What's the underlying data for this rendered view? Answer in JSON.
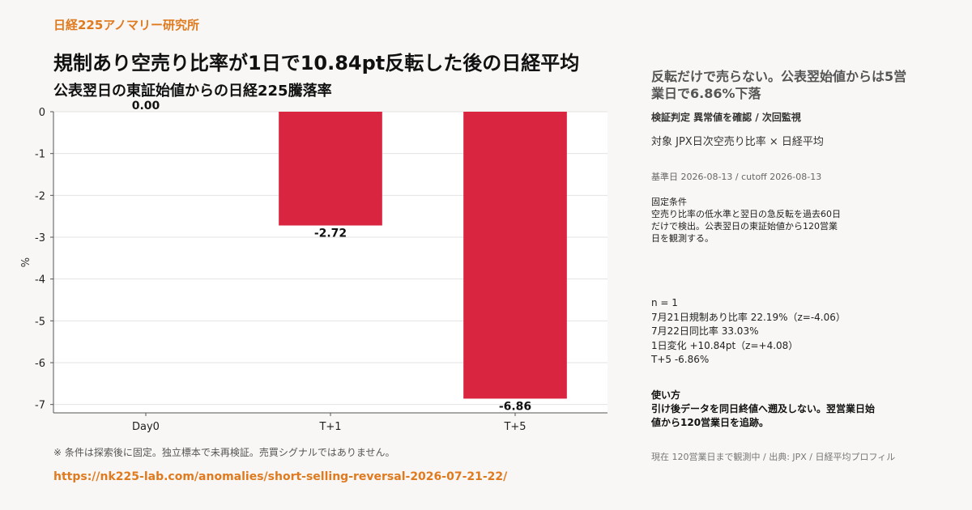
{
  "brand": "日経225アノマリー研究所",
  "title": "規制あり空売り比率が1日で10.84pt反転した後の日経平均",
  "subtitle": "公表翌日の東証始値からの日経225騰落率",
  "chart_data": {
    "type": "bar",
    "categories": [
      "Day0",
      "T+1",
      "T+5"
    ],
    "values": [
      0.0,
      -2.72,
      -6.86
    ],
    "value_labels": [
      "0.00",
      "-2.72",
      "-6.86"
    ],
    "ylabel": "%",
    "ylim": [
      -7.2,
      0
    ],
    "yticks": [
      0,
      -1,
      -2,
      -3,
      -4,
      -5,
      -6,
      -7
    ],
    "ytick_labels": [
      "0",
      "-1",
      "-2",
      "-3",
      "-4",
      "-5",
      "-6",
      "-7"
    ],
    "grid": true,
    "bar_color": "#d92540"
  },
  "footnote": "※ 条件は探索後に固定。独立標本で未再検証。売買シグナルではありません。",
  "url": "https://nk225-lab.com/anomalies/short-selling-reversal-2026-07-21-22/",
  "side": {
    "headline": "反転だけで売らない。公表翌始値からは5営業日で6.86%下落",
    "verdict": "検証判定  異常値を確認 / 次回監視",
    "target": "対象  JPX日次空売り比率 × 日経平均",
    "dates": "基準日 2026-08-13 / cutoff 2026-08-13",
    "conditions_title": "固定条件",
    "conditions_lines": [
      "空売り比率の低水準と翌日の急反転を過去60日",
      "だけで検出。公表翌日の東証始値から120営業",
      "日を観測する。"
    ],
    "stats": [
      "n = 1",
      "7月21日規制あり比率  22.19%（z=-4.06）",
      "7月22日同比率  33.03%",
      "1日変化  +10.84pt（z=+4.08）",
      "T+5  -6.86%"
    ],
    "usage_title": "使い方",
    "usage_lines": [
      "引け後データを同日終値へ遡及しない。翌営業日始",
      "値から120営業日を追跡。"
    ],
    "footer": "現在 120営業日まで観測中 / 出典: JPX / 日経平均プロフィル"
  }
}
